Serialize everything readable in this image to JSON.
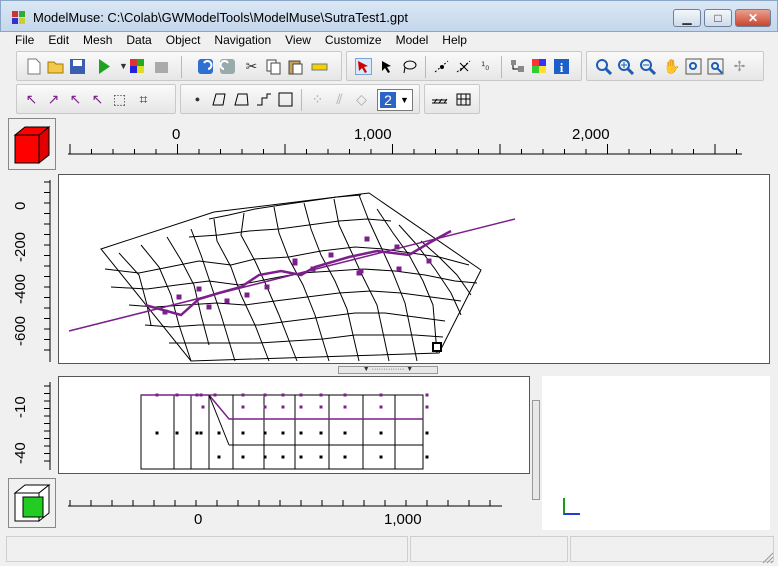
{
  "window": {
    "title": "ModelMuse: C:\\Colab\\GWModelTools\\ModelMuse\\SutraTest1.gpt",
    "minimize_glyph": "▁",
    "maximize_glyph": "□",
    "close_glyph": "✕"
  },
  "menu": [
    "File",
    "Edit",
    "Mesh",
    "Data",
    "Object",
    "Navigation",
    "View",
    "Customize",
    "Model",
    "Help"
  ],
  "toolbar": {
    "layer_value": "2"
  },
  "top_ruler": {
    "labels": [
      "0",
      "1,000",
      "2,000"
    ]
  },
  "left_ruler": {
    "labels": [
      "0",
      "-200",
      "-400",
      "-600"
    ]
  },
  "side_ruler": {
    "labels": [
      "-10",
      "-40"
    ]
  },
  "bottom_ruler": {
    "labels": [
      "0",
      "1,000"
    ]
  },
  "colors": {
    "accent": "#7b1f8a",
    "grid": "#000000",
    "cube_top": "#ff0000",
    "cube_bottom": "#22cc22"
  },
  "icons": [
    "new-file-icon",
    "open-icon",
    "save-icon",
    "run-icon",
    "export-icon",
    "undo-icon",
    "redo-icon",
    "cut-icon",
    "copy-icon",
    "paste-icon",
    "measure-icon",
    "select-icon",
    "select-vertex-icon",
    "lasso-icon",
    "add-vertex-icon",
    "delete-vertex-icon",
    "split-icon",
    "color-grid-icon",
    "info-icon",
    "zoom-icon",
    "zoom-in-icon",
    "zoom-out-icon",
    "pan-icon",
    "zoom-extents-icon",
    "restore-view-icon"
  ]
}
